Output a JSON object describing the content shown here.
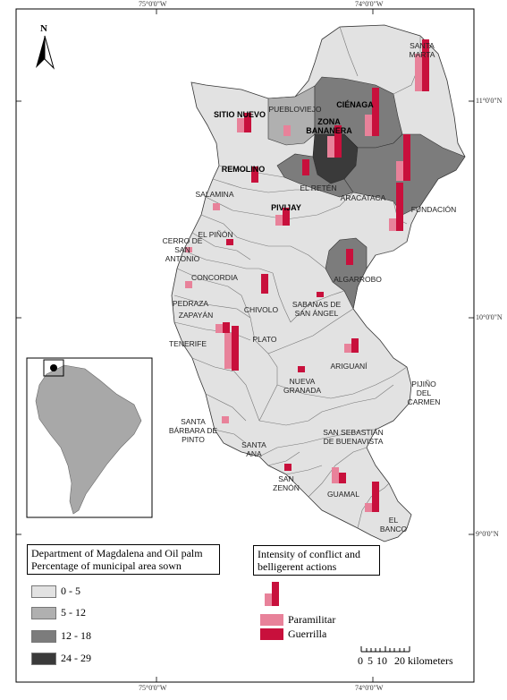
{
  "coords": {
    "top_left_lon": "75°0'0\"W",
    "top_right_lon": "74°0'0\"W",
    "bottom_left_lon": "75°0'0\"W",
    "bottom_right_lon": "74°0'0\"W",
    "lat_11": "11°0'0\"N",
    "lat_10": "10°0'0\"N",
    "lat_9": "9°0'0\"N"
  },
  "north_label": "N",
  "municipalities": [
    {
      "id": "santa-marta",
      "name": "SANTA\nMARTA",
      "bold": false
    },
    {
      "id": "pueblo-viejo",
      "name": "PUEBLOVIEJO",
      "bold": false
    },
    {
      "id": "cienaga",
      "name": "CIÉNAGA",
      "bold": true
    },
    {
      "id": "sitio-nuevo",
      "name": "SITIO NUEVO",
      "bold": true
    },
    {
      "id": "zona-bananera",
      "name": "ZONA\nBANANERA",
      "bold": true
    },
    {
      "id": "remolino",
      "name": "REMOLINO",
      "bold": true
    },
    {
      "id": "el-reten",
      "name": "EL RETÉN",
      "bold": false
    },
    {
      "id": "aracataca",
      "name": "ARACATACA",
      "bold": false
    },
    {
      "id": "salamina",
      "name": "SALAMINA",
      "bold": false
    },
    {
      "id": "pivijay",
      "name": "PIVIJAY",
      "bold": true
    },
    {
      "id": "fundacion",
      "name": "FUNDACIÓN",
      "bold": false
    },
    {
      "id": "el-pinon",
      "name": "EL PIÑÓN",
      "bold": false
    },
    {
      "id": "cerro-san-antonio",
      "name": "CERRO DE\nSAN\nANTONIO",
      "bold": false
    },
    {
      "id": "concordia",
      "name": "CONCORDIA",
      "bold": false
    },
    {
      "id": "algarrobo",
      "name": "ALGARROBO",
      "bold": false
    },
    {
      "id": "pedraza",
      "name": "PEDRAZA",
      "bold": false
    },
    {
      "id": "zapayan",
      "name": "ZAPAYÁN",
      "bold": false
    },
    {
      "id": "chivolo",
      "name": "CHIVOLO",
      "bold": false
    },
    {
      "id": "sabanas-san-angel",
      "name": "SABANAS DE\nSAN ÁNGEL",
      "bold": false
    },
    {
      "id": "tenerife",
      "name": "TENERIFE",
      "bold": false
    },
    {
      "id": "plato",
      "name": "PLATO",
      "bold": false
    },
    {
      "id": "ariguani",
      "name": "ARIGUANÍ",
      "bold": false
    },
    {
      "id": "nueva-granada",
      "name": "NUEVA\nGRANADA",
      "bold": false
    },
    {
      "id": "pijino-del-carmen",
      "name": "PIJIÑO\nDEL\nCARMEN",
      "bold": false
    },
    {
      "id": "santa-barbara-pinto",
      "name": "SANTA\nBÁRBARA DE\nPINTO",
      "bold": false
    },
    {
      "id": "san-sebastian",
      "name": "SAN SEBASTIÁN\nDE BUENAVISTA",
      "bold": false
    },
    {
      "id": "santa-ana",
      "name": "SANTA\nANA",
      "bold": false
    },
    {
      "id": "san-zenon",
      "name": "SAN\nZENÓN",
      "bold": false
    },
    {
      "id": "guamal",
      "name": "GUAMAL",
      "bold": false
    },
    {
      "id": "el-banco",
      "name": "EL\nBANCO",
      "bold": false
    }
  ],
  "legend_oilpalm": {
    "title_line1": "Department of Magdalena and Oil palm",
    "title_line2": "Percentage of municipal area sown",
    "classes": [
      {
        "label": "0 - 5",
        "color": "#e2e2e2"
      },
      {
        "label": "5 - 12",
        "color": "#b0b0b0"
      },
      {
        "label": "12 - 18",
        "color": "#7c7c7c"
      },
      {
        "label": "24 - 29",
        "color": "#3a3a3a"
      }
    ]
  },
  "legend_conflict": {
    "title_line1": "Intensity of conflict and",
    "title_line2": "belligerent actions",
    "items": [
      {
        "label": "Paramilitar",
        "color": "#e8829a"
      },
      {
        "label": "Guerrilla",
        "color": "#c8103c"
      }
    ]
  },
  "scale": {
    "ticks": [
      "0",
      "5",
      "10",
      "20"
    ],
    "unit": "kilometers"
  }
}
